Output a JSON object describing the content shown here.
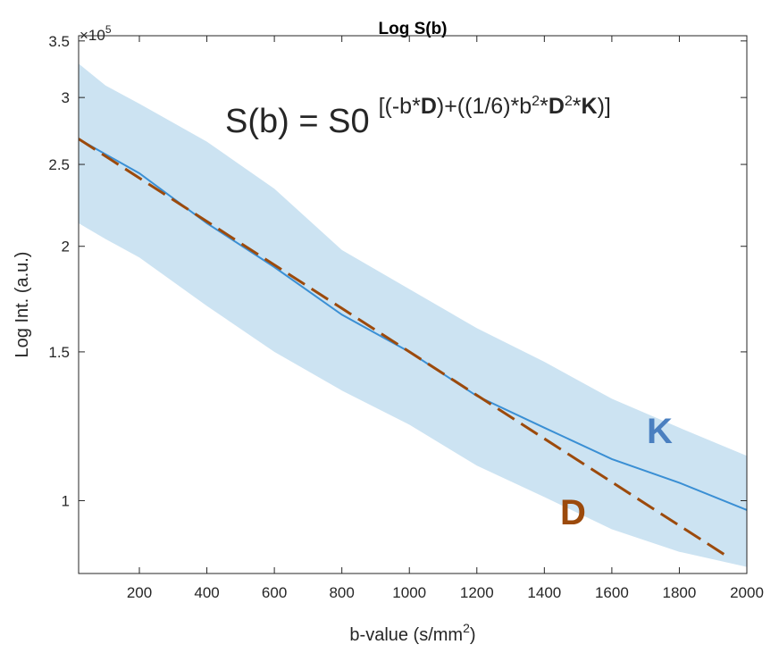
{
  "colors": {
    "band": "#cce3f2",
    "k_line": "#3a8fd4",
    "d_line": "#9c4a0c",
    "k_label": "#4a7fc0",
    "d_label": "#9c4a0c",
    "axis": "#262626"
  },
  "chart_data": {
    "type": "line",
    "title": "Log S(b)",
    "xlabel_main": "b-value (s/mm",
    "xlabel_sup": "2",
    "xlabel_end": ")",
    "ylabel": "Log Int. (a.u.)",
    "yscale": "log",
    "y_multiplier": {
      "base": "×10",
      "exponent": "5"
    },
    "xlim": [
      20,
      2000
    ],
    "ylim": [
      82000,
      355000
    ],
    "xticks": [
      200,
      400,
      600,
      800,
      1000,
      1200,
      1400,
      1600,
      1800,
      2000
    ],
    "yticks": [
      {
        "value": 100000,
        "label": "1"
      },
      {
        "value": 150000,
        "label": "1.5"
      },
      {
        "value": 200000,
        "label": "2"
      },
      {
        "value": 250000,
        "label": "2.5"
      },
      {
        "value": 300000,
        "label": "3"
      },
      {
        "value": 350000,
        "label": "3.5"
      }
    ],
    "formula": {
      "lhs": "S(b) = S0",
      "exp_parts": [
        {
          "t": "[(-b*",
          "b": false,
          "s": false
        },
        {
          "t": "D",
          "b": true,
          "s": false
        },
        {
          "t": ")+((1/6)*b",
          "b": false,
          "s": false
        },
        {
          "t": "2",
          "b": false,
          "s": true
        },
        {
          "t": "*",
          "b": false,
          "s": false
        },
        {
          "t": "D",
          "b": true,
          "s": false
        },
        {
          "t": "2",
          "b": false,
          "s": true
        },
        {
          "t": "*",
          "b": false,
          "s": false
        },
        {
          "t": "K",
          "b": true,
          "s": false
        },
        {
          "t": ")]",
          "b": false,
          "s": false
        }
      ]
    },
    "series": [
      {
        "name": "K",
        "label": "K",
        "x": [
          20,
          100,
          200,
          400,
          600,
          800,
          1000,
          1200,
          1400,
          1600,
          1800,
          2000
        ],
        "y": [
          268000,
          257000,
          244000,
          213000,
          189000,
          166000,
          150000,
          133000,
          122000,
          112000,
          105000,
          97500
        ],
        "band_upper": [
          329000,
          310000,
          295000,
          266000,
          234000,
          198000,
          178000,
          160000,
          146000,
          132000,
          122000,
          113000
        ],
        "band_lower": [
          213000,
          204000,
          194000,
          170000,
          150000,
          135000,
          123000,
          110000,
          101000,
          92500,
          87000,
          83500
        ]
      },
      {
        "name": "D",
        "label": "D",
        "style": "dashed",
        "x": [
          20,
          1950
        ],
        "y": [
          268000,
          85500
        ]
      }
    ]
  }
}
